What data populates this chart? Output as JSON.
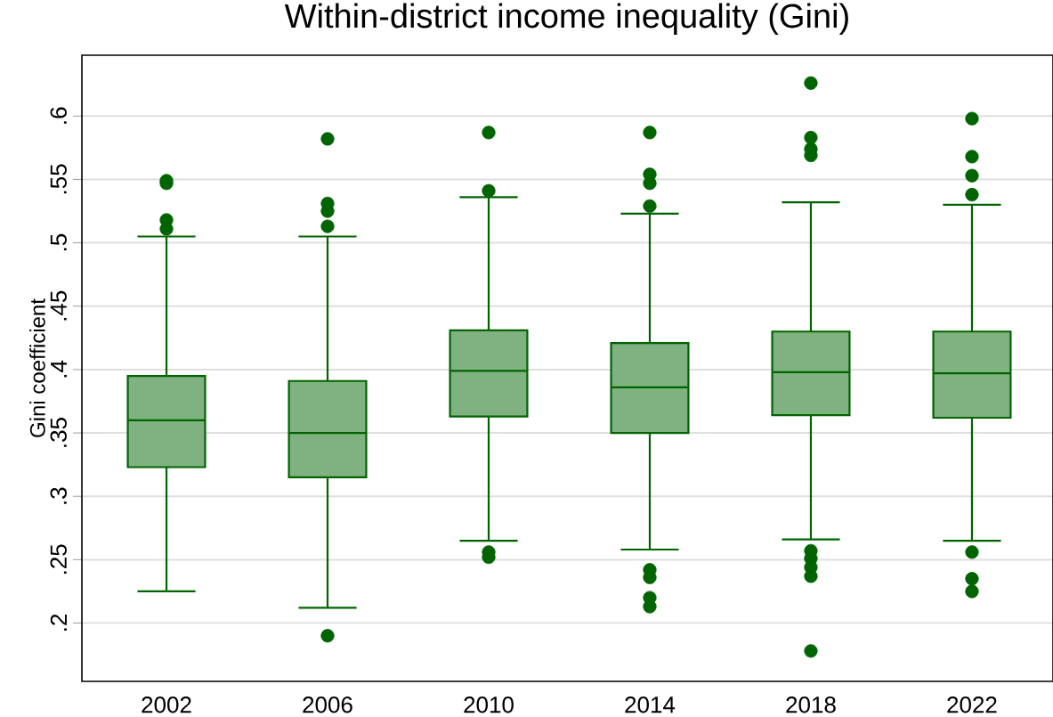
{
  "chart_data": {
    "type": "box",
    "title": "Within-district income inequality (Gini)",
    "ylabel": "Gini coefficient",
    "categories": [
      "2002",
      "2006",
      "2010",
      "2014",
      "2018",
      "2022"
    ],
    "boxes": [
      {
        "low": 0.225,
        "q1": 0.323,
        "median": 0.36,
        "q3": 0.395,
        "high": 0.505,
        "outliers": [
          0.547,
          0.549,
          0.518,
          0.511
        ]
      },
      {
        "low": 0.212,
        "q1": 0.315,
        "median": 0.35,
        "q3": 0.391,
        "high": 0.505,
        "outliers": [
          0.582,
          0.531,
          0.525,
          0.513,
          0.19
        ]
      },
      {
        "low": 0.265,
        "q1": 0.363,
        "median": 0.399,
        "q3": 0.431,
        "high": 0.536,
        "outliers": [
          0.587,
          0.541,
          0.256,
          0.252
        ]
      },
      {
        "low": 0.258,
        "q1": 0.35,
        "median": 0.386,
        "q3": 0.421,
        "high": 0.523,
        "outliers": [
          0.587,
          0.554,
          0.547,
          0.529,
          0.242,
          0.236,
          0.22,
          0.213
        ]
      },
      {
        "low": 0.266,
        "q1": 0.364,
        "median": 0.398,
        "q3": 0.43,
        "high": 0.532,
        "outliers": [
          0.626,
          0.583,
          0.574,
          0.569,
          0.257,
          0.251,
          0.244,
          0.237,
          0.178
        ]
      },
      {
        "low": 0.265,
        "q1": 0.362,
        "median": 0.397,
        "q3": 0.43,
        "high": 0.53,
        "outliers": [
          0.598,
          0.568,
          0.553,
          0.538,
          0.256,
          0.235,
          0.225
        ]
      }
    ],
    "color": "#006400",
    "marker": "circle",
    "ylim": [
      0.154,
      0.648
    ],
    "yticks": [
      {
        "value": 0.2,
        "label": ".2"
      },
      {
        "value": 0.25,
        "label": ".25"
      },
      {
        "value": 0.3,
        "label": ".3"
      },
      {
        "value": 0.35,
        "label": ".35"
      },
      {
        "value": 0.4,
        "label": ".4"
      },
      {
        "value": 0.45,
        "label": ".45"
      },
      {
        "value": 0.5,
        "label": ".5"
      },
      {
        "value": 0.55,
        "label": ".55"
      },
      {
        "value": 0.6,
        "label": ".6"
      }
    ],
    "grid": "y"
  }
}
